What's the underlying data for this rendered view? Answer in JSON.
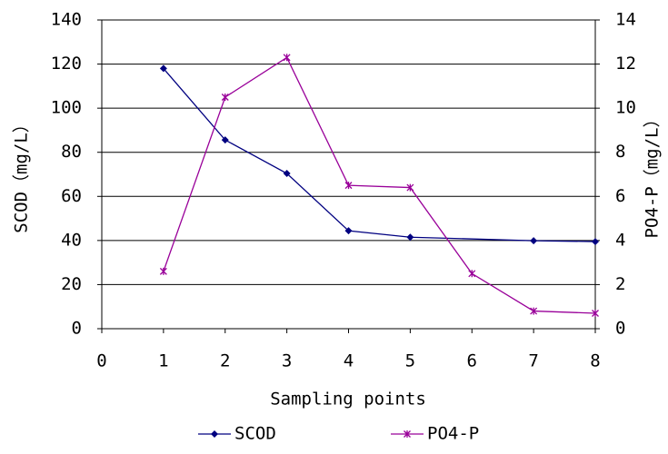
{
  "chart_data": {
    "type": "line",
    "x_label": "Sampling points",
    "y_label": "SCOD（mg/L）",
    "y2_label": "PO4-P（mg/L）",
    "xlim": [
      0,
      8
    ],
    "xticks": [
      0,
      1,
      2,
      3,
      4,
      5,
      6,
      7,
      8
    ],
    "ylim": [
      0,
      140
    ],
    "yticks": [
      0,
      20,
      40,
      60,
      80,
      100,
      120,
      140
    ],
    "y2lim": [
      0,
      14
    ],
    "y2ticks": [
      0,
      2,
      4,
      6,
      8,
      10,
      12,
      14
    ],
    "grid": true,
    "legend": "bottom",
    "series": [
      {
        "name": "SCOD",
        "color": "#000080",
        "marker": "diamond",
        "x": [
          1,
          2,
          3,
          4,
          5,
          7,
          8
        ],
        "values": [
          118,
          85.6,
          70.4,
          44.4,
          41.5,
          39.9,
          39.5
        ]
      },
      {
        "name": "PO4-P",
        "color": "#990099",
        "marker": "star",
        "axis": "y2",
        "x": [
          1,
          2,
          3,
          4,
          5,
          6,
          7,
          8
        ],
        "values": [
          2.6,
          10.5,
          12.3,
          6.5,
          6.4,
          2.5,
          0.8,
          0.7
        ]
      }
    ]
  }
}
